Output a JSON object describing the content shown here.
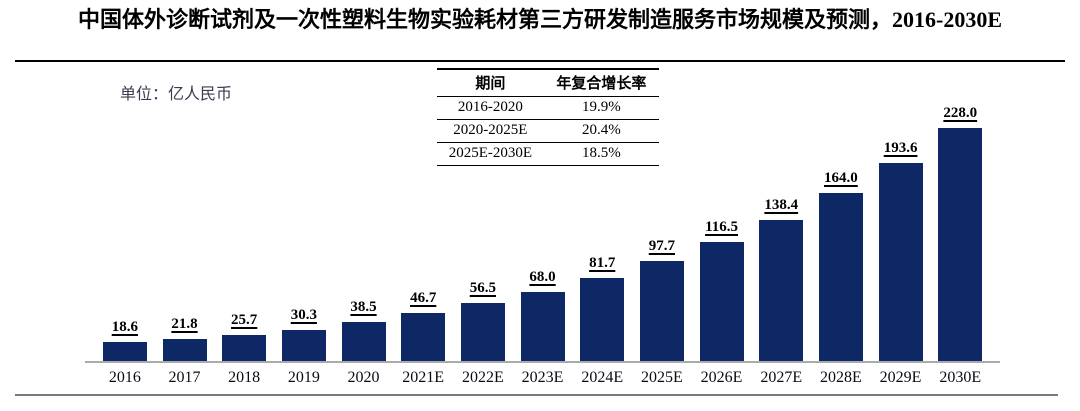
{
  "title": {
    "text": "中国体外诊断试剂及一次性塑料生物实验耗材第三方研发制造服务市场规模及预测，2016-2030E"
  },
  "unit_label": "单位：亿人民币",
  "cagr_table": {
    "headers": [
      "期间",
      "年复合增长率"
    ],
    "rows": [
      {
        "period": "2016-2020",
        "cagr": "19.9%"
      },
      {
        "period": "2020-2025E",
        "cagr": "20.4%"
      },
      {
        "period": "2025E-2030E",
        "cagr": "18.5%"
      }
    ]
  },
  "chart_data": {
    "type": "bar",
    "title": "中国体外诊断试剂及一次性塑料生物实验耗材第三方研发制造服务市场规模及预测，2016-2030E",
    "unit": "亿人民币",
    "categories": [
      "2016",
      "2017",
      "2018",
      "2019",
      "2020",
      "2021E",
      "2022E",
      "2023E",
      "2024E",
      "2025E",
      "2026E",
      "2027E",
      "2028E",
      "2029E",
      "2030E"
    ],
    "values": [
      18.6,
      21.8,
      25.7,
      30.3,
      38.5,
      46.7,
      56.5,
      68.0,
      81.7,
      97.7,
      116.5,
      138.4,
      164.0,
      193.6,
      228.0
    ],
    "value_label_decimals": 1,
    "bar_color": "#0D2864",
    "ylim": [
      0,
      240
    ],
    "xlabel": "",
    "ylabel": "亿人民币",
    "grid": false,
    "legend_position": "none",
    "value_labels": true
  }
}
